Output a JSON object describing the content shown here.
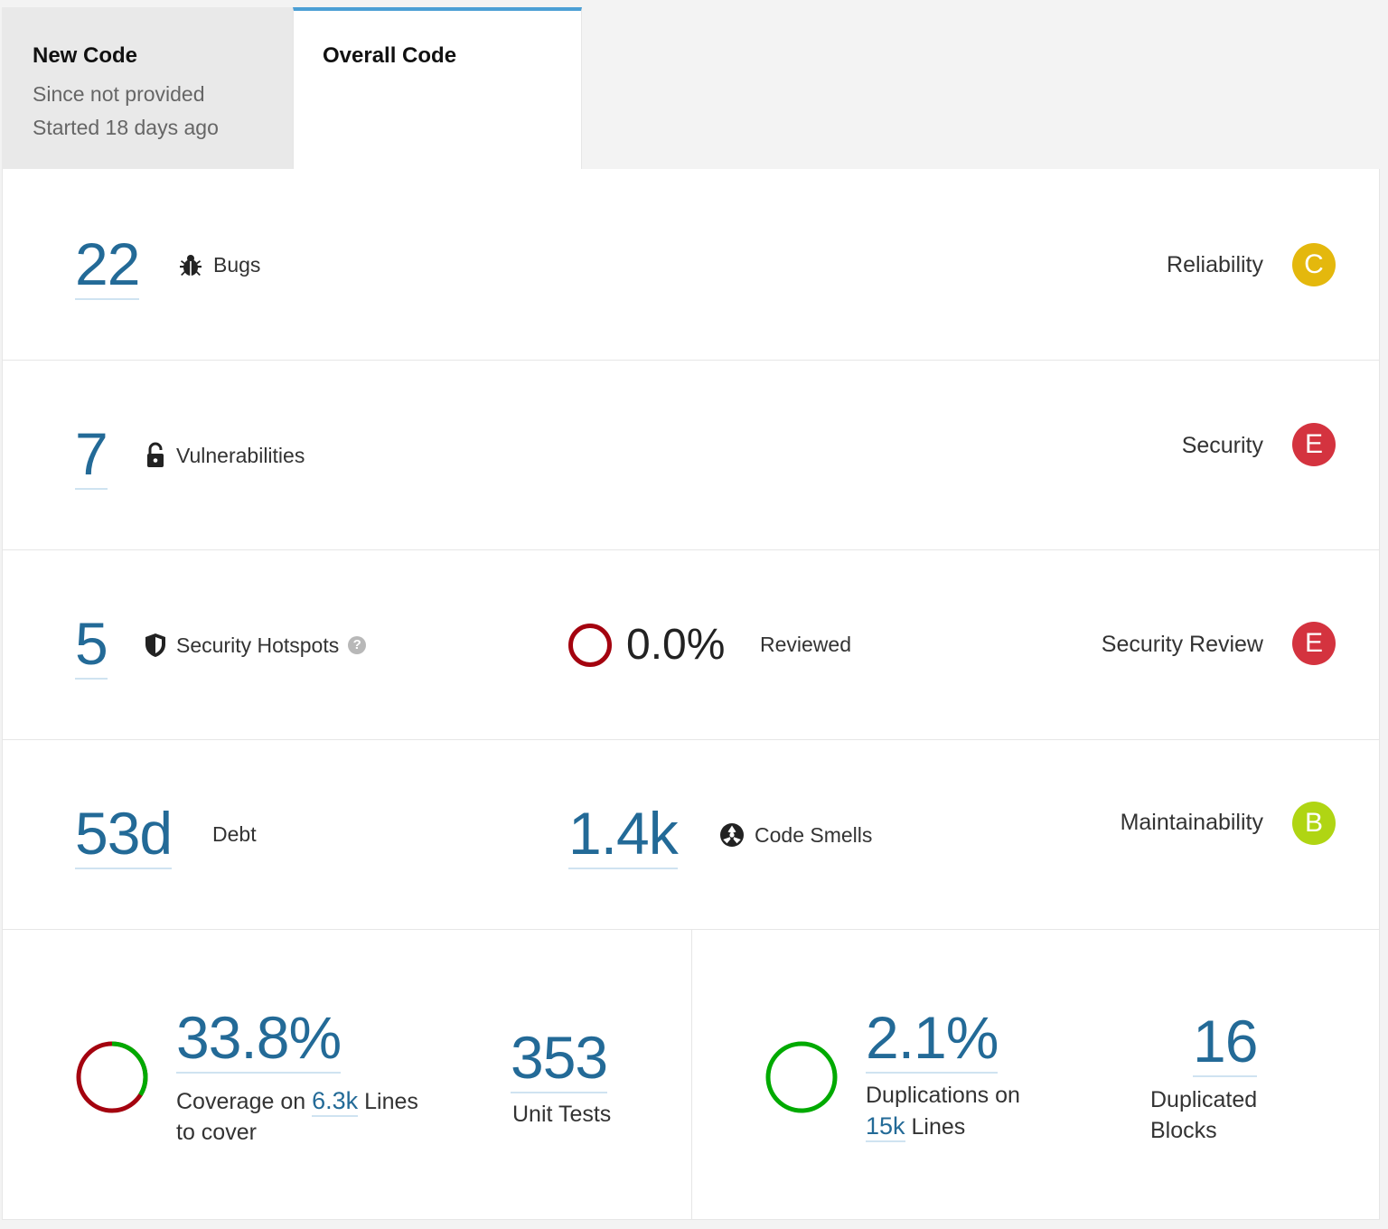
{
  "tabs": {
    "new_code": {
      "title": "New Code",
      "line1": "Since not provided",
      "line2": "Started 18 days ago"
    },
    "overall_code": {
      "title": "Overall Code"
    }
  },
  "reliability": {
    "value": "22",
    "label": "Bugs",
    "rating_label": "Reliability",
    "rating": "C",
    "rating_color": "#e4b80d"
  },
  "security": {
    "value": "7",
    "label": "Vulnerabilities",
    "rating_label": "Security",
    "rating": "E",
    "rating_color": "#d4333f"
  },
  "hotspots": {
    "value": "5",
    "label": "Security Hotspots",
    "help": "?",
    "reviewed_pct": "0.0%",
    "reviewed_label": "Reviewed",
    "rating_label": "Security Review",
    "rating": "E",
    "rating_color": "#d4333f"
  },
  "maintainability": {
    "debt_value": "53d",
    "debt_label": "Debt",
    "smells_value": "1.4k",
    "smells_label": "Code Smells",
    "rating_label": "Maintainability",
    "rating": "B",
    "rating_color": "#b0d513"
  },
  "coverage": {
    "value": "33.8%",
    "coverage_fraction": 0.338,
    "label_pre": "Coverage on",
    "lines_value": "6.3k",
    "label_post": "Lines",
    "label_line2": "to cover",
    "unit_tests_value": "353",
    "unit_tests_label": "Unit Tests"
  },
  "duplications": {
    "value": "2.1%",
    "label_pre": "Duplications on",
    "lines_value": "15k",
    "label_post": "Lines",
    "blocks_value": "16",
    "blocks_label_1": "Duplicated",
    "blocks_label_2": "Blocks"
  }
}
